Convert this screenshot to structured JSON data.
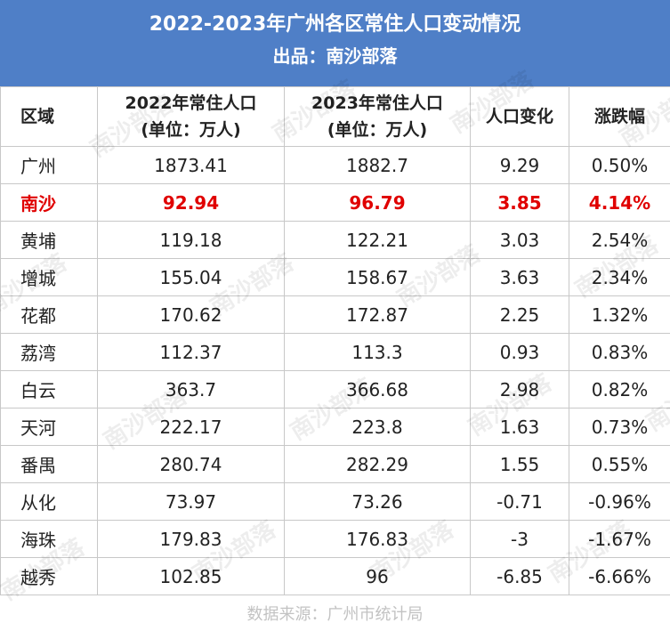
{
  "header": {
    "title": "2022-2023年广州各区常住人口变动情况",
    "subtitle": "出品：南沙部落"
  },
  "table": {
    "columns": [
      {
        "line1": "区域",
        "line2": ""
      },
      {
        "line1": "2022年常住人口",
        "line2": "(单位：万人)"
      },
      {
        "line1": "2023年常住人口",
        "line2": "(单位：万人)"
      },
      {
        "line1": "人口变化",
        "line2": ""
      },
      {
        "line1": "涨跌幅",
        "line2": ""
      }
    ],
    "rows": [
      {
        "region": "广州",
        "pop2022": "1873.41",
        "pop2023": "1882.7",
        "change": "9.29",
        "pct": "0.50%",
        "highlight": false
      },
      {
        "region": "南沙",
        "pop2022": "92.94",
        "pop2023": "96.79",
        "change": "3.85",
        "pct": "4.14%",
        "highlight": true
      },
      {
        "region": "黄埔",
        "pop2022": "119.18",
        "pop2023": "122.21",
        "change": "3.03",
        "pct": "2.54%",
        "highlight": false
      },
      {
        "region": "增城",
        "pop2022": "155.04",
        "pop2023": "158.67",
        "change": "3.63",
        "pct": "2.34%",
        "highlight": false
      },
      {
        "region": "花都",
        "pop2022": "170.62",
        "pop2023": "172.87",
        "change": "2.25",
        "pct": "1.32%",
        "highlight": false
      },
      {
        "region": "荔湾",
        "pop2022": "112.37",
        "pop2023": "113.3",
        "change": "0.93",
        "pct": "0.83%",
        "highlight": false
      },
      {
        "region": "白云",
        "pop2022": "363.7",
        "pop2023": "366.68",
        "change": "2.98",
        "pct": "0.82%",
        "highlight": false
      },
      {
        "region": "天河",
        "pop2022": "222.17",
        "pop2023": "223.8",
        "change": "1.63",
        "pct": "0.73%",
        "highlight": false
      },
      {
        "region": "番禺",
        "pop2022": "280.74",
        "pop2023": "282.29",
        "change": "1.55",
        "pct": "0.55%",
        "highlight": false
      },
      {
        "region": "从化",
        "pop2022": "73.97",
        "pop2023": "73.26",
        "change": "-0.71",
        "pct": "-0.96%",
        "highlight": false
      },
      {
        "region": "海珠",
        "pop2022": "179.83",
        "pop2023": "176.83",
        "change": "-3",
        "pct": "-1.67%",
        "highlight": false
      },
      {
        "region": "越秀",
        "pop2022": "102.85",
        "pop2023": "96",
        "change": "-6.85",
        "pct": "-6.66%",
        "highlight": false
      }
    ]
  },
  "watermark_text": "南沙部落",
  "footer": {
    "source": "数据来源：广州市统计局"
  },
  "colors": {
    "banner": "#4f7fc7",
    "highlight": "#e00000"
  }
}
